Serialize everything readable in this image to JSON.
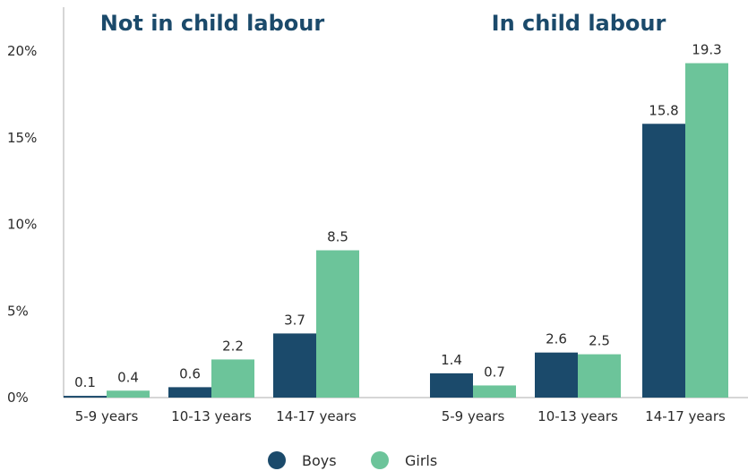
{
  "colors": {
    "boys": "#1b4a6b",
    "girls": "#6cc49a",
    "title": "#1b4a6b",
    "axis": "#c8c8c8"
  },
  "legend": {
    "boys_label": "Boys",
    "girls_label": "Girls"
  },
  "chart_data": {
    "type": "bar",
    "ylim": [
      0,
      20
    ],
    "yticks": [
      0,
      5,
      10,
      15,
      20
    ],
    "ytick_labels": [
      "0%",
      "5%",
      "10%",
      "15%",
      "20%"
    ],
    "grid": false,
    "legend_position": "bottom-center",
    "panels": [
      {
        "title": "Not in child labour",
        "categories": [
          "5-9 years",
          "10-13 years",
          "14-17 years"
        ],
        "series": [
          {
            "name": "Boys",
            "values": [
              0.1,
              0.6,
              3.7
            ]
          },
          {
            "name": "Girls",
            "values": [
              0.4,
              2.2,
              8.5
            ]
          }
        ],
        "data_labels": [
          [
            "0.1",
            "0.6",
            "3.7"
          ],
          [
            "0.4",
            "2.2",
            "8.5"
          ]
        ]
      },
      {
        "title": "In child labour",
        "categories": [
          "5-9 years",
          "10-13 years",
          "14-17 years"
        ],
        "series": [
          {
            "name": "Boys",
            "values": [
              1.4,
              2.6,
              15.8
            ]
          },
          {
            "name": "Girls",
            "values": [
              0.7,
              2.5,
              19.3
            ]
          }
        ],
        "data_labels": [
          [
            "1.4",
            "2.6",
            "15.8"
          ],
          [
            "0.7",
            "2.5",
            "19.3"
          ]
        ]
      }
    ]
  }
}
